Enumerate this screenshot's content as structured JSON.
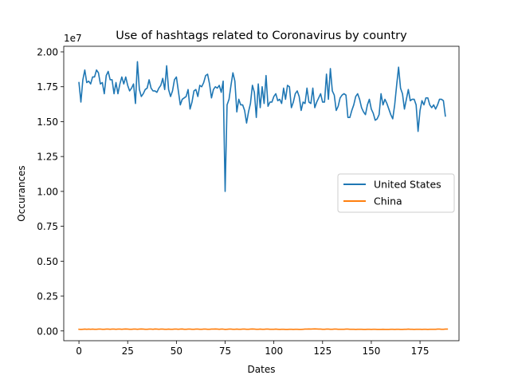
{
  "chart_data": {
    "type": "line",
    "title": "Use of hashtags related to Coronavirus by country",
    "xlabel": "Dates",
    "ylabel": "Occurances",
    "y_offset_label": "1e7",
    "xlim": [
      -7.8,
      195.0
    ],
    "ylim": [
      -0.07,
      2.04
    ],
    "y_scale": 10000000,
    "x_ticks": [
      0,
      25,
      50,
      75,
      100,
      125,
      150,
      175
    ],
    "y_ticks": [
      0.0,
      0.25,
      0.5,
      0.75,
      1.0,
      1.25,
      1.5,
      1.75,
      2.0
    ],
    "y_tick_labels": [
      "0.00",
      "0.25",
      "0.50",
      "0.75",
      "1.00",
      "1.25",
      "1.50",
      "1.75",
      "2.00"
    ],
    "grid": false,
    "legend_position": "center-right",
    "series": [
      {
        "name": "United States",
        "color": "#1f77b4",
        "x_start": 0,
        "values": [
          1.78,
          1.64,
          1.8,
          1.87,
          1.78,
          1.79,
          1.77,
          1.82,
          1.82,
          1.87,
          1.85,
          1.77,
          1.78,
          1.7,
          1.83,
          1.86,
          1.8,
          1.8,
          1.7,
          1.78,
          1.7,
          1.77,
          1.82,
          1.77,
          1.82,
          1.76,
          1.72,
          1.74,
          1.77,
          1.63,
          1.93,
          1.73,
          1.68,
          1.7,
          1.73,
          1.74,
          1.8,
          1.74,
          1.72,
          1.72,
          1.71,
          1.74,
          1.76,
          1.81,
          1.73,
          1.9,
          1.73,
          1.68,
          1.72,
          1.8,
          1.82,
          1.72,
          1.62,
          1.66,
          1.67,
          1.68,
          1.73,
          1.59,
          1.64,
          1.72,
          1.73,
          1.68,
          1.76,
          1.75,
          1.78,
          1.83,
          1.84,
          1.77,
          1.67,
          1.73,
          1.75,
          1.74,
          1.76,
          1.71,
          1.79,
          1.0,
          1.62,
          1.66,
          1.76,
          1.85,
          1.79,
          1.57,
          1.66,
          1.62,
          1.62,
          1.58,
          1.49,
          1.57,
          1.63,
          1.76,
          1.71,
          1.53,
          1.77,
          1.6,
          1.75,
          1.63,
          1.83,
          1.61,
          1.64,
          1.64,
          1.68,
          1.7,
          1.65,
          1.66,
          1.63,
          1.74,
          1.66,
          1.76,
          1.75,
          1.6,
          1.64,
          1.7,
          1.72,
          1.68,
          1.58,
          1.64,
          1.63,
          1.74,
          1.64,
          1.63,
          1.74,
          1.6,
          1.64,
          1.67,
          1.7,
          1.64,
          1.64,
          1.84,
          1.66,
          1.88,
          1.72,
          1.69,
          1.58,
          1.61,
          1.67,
          1.69,
          1.7,
          1.69,
          1.53,
          1.53,
          1.58,
          1.62,
          1.68,
          1.7,
          1.66,
          1.6,
          1.57,
          1.55,
          1.62,
          1.66,
          1.59,
          1.56,
          1.51,
          1.52,
          1.55,
          1.7,
          1.62,
          1.66,
          1.63,
          1.59,
          1.55,
          1.52,
          1.62,
          1.76,
          1.89,
          1.74,
          1.7,
          1.59,
          1.66,
          1.73,
          1.65,
          1.66,
          1.66,
          1.62,
          1.43,
          1.58,
          1.65,
          1.62,
          1.67,
          1.67,
          1.62,
          1.6,
          1.62,
          1.59,
          1.62,
          1.66,
          1.66,
          1.65,
          1.54
        ]
      },
      {
        "name": "China",
        "color": "#ff7f0e",
        "x_start": 0,
        "values": [
          0.012,
          0.011,
          0.012,
          0.013,
          0.012,
          0.013,
          0.012,
          0.013,
          0.012,
          0.012,
          0.013,
          0.013,
          0.012,
          0.012,
          0.013,
          0.013,
          0.012,
          0.013,
          0.013,
          0.012,
          0.013,
          0.013,
          0.012,
          0.013,
          0.014,
          0.013,
          0.012,
          0.012,
          0.013,
          0.013,
          0.012,
          0.013,
          0.014,
          0.013,
          0.012,
          0.012,
          0.013,
          0.013,
          0.012,
          0.014,
          0.013,
          0.012,
          0.013,
          0.013,
          0.012,
          0.012,
          0.013,
          0.012,
          0.012,
          0.013,
          0.013,
          0.012,
          0.013,
          0.014,
          0.012,
          0.012,
          0.013,
          0.013,
          0.012,
          0.012,
          0.013,
          0.013,
          0.012,
          0.012,
          0.013,
          0.013,
          0.012,
          0.012,
          0.013,
          0.013,
          0.014,
          0.013,
          0.012,
          0.013,
          0.013,
          0.011,
          0.012,
          0.013,
          0.013,
          0.012,
          0.012,
          0.013,
          0.012,
          0.012,
          0.013,
          0.013,
          0.012,
          0.012,
          0.013,
          0.014,
          0.013,
          0.012,
          0.012,
          0.013,
          0.012,
          0.012,
          0.013,
          0.013,
          0.012,
          0.012,
          0.012,
          0.013,
          0.012,
          0.011,
          0.012,
          0.012,
          0.011,
          0.011,
          0.012,
          0.012,
          0.011,
          0.012,
          0.012,
          0.011,
          0.011,
          0.012,
          0.013,
          0.013,
          0.014,
          0.013,
          0.014,
          0.015,
          0.014,
          0.013,
          0.013,
          0.012,
          0.012,
          0.013,
          0.013,
          0.012,
          0.012,
          0.013,
          0.013,
          0.012,
          0.012,
          0.012,
          0.012,
          0.013,
          0.013,
          0.012,
          0.012,
          0.012,
          0.011,
          0.012,
          0.012,
          0.012,
          0.011,
          0.011,
          0.012,
          0.012,
          0.011,
          0.012,
          0.012,
          0.011,
          0.011,
          0.011,
          0.012,
          0.011,
          0.011,
          0.011,
          0.012,
          0.012,
          0.011,
          0.012,
          0.012,
          0.011,
          0.011,
          0.012,
          0.012,
          0.013,
          0.012,
          0.012,
          0.011,
          0.012,
          0.012,
          0.012,
          0.011,
          0.012,
          0.012,
          0.011,
          0.012,
          0.012,
          0.012,
          0.012,
          0.013,
          0.013,
          0.012,
          0.012,
          0.013,
          0.013
        ]
      }
    ]
  }
}
